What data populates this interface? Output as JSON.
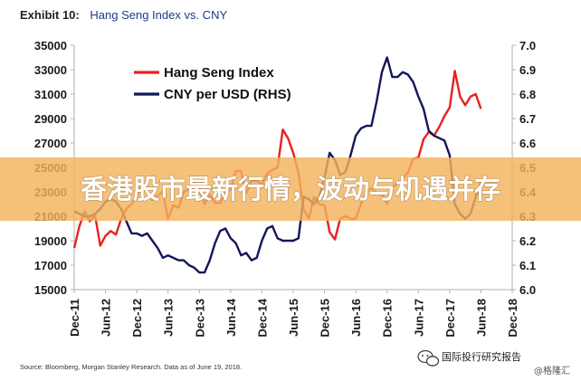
{
  "exhibit_label": "Exhibit 10:",
  "exhibit_title": "Hang Seng Index vs. CNY",
  "source_note": "Source: Bloomberg, Morgan Stanley Research. Data as of June 19, 2018.",
  "overlay_banner": "香港股市最新行情，波动与机遇并存",
  "watermark": {
    "channel": "国际投行研究报告",
    "handle": "@格隆汇"
  },
  "colors": {
    "hsi": "#e8211f",
    "cny": "#12175a",
    "banner_bg": "#f3b25c",
    "axis_line": "#b0b0b0"
  },
  "chart_data": {
    "type": "line",
    "title": "Hang Seng Index vs. CNY",
    "x_tick_labels": [
      "Dec-11",
      "Jun-12",
      "Dec-12",
      "Jun-13",
      "Dec-13",
      "Jun-14",
      "Dec-14",
      "Jun-15",
      "Dec-15",
      "Jun-16",
      "Dec-16",
      "Jun-17",
      "Dec-17",
      "Jun-18",
      "Dec-18"
    ],
    "x_range": [
      "2011-12",
      "2018-12"
    ],
    "y_left": {
      "label": "",
      "range": [
        15000,
        35000
      ],
      "ticks": [
        "15000",
        "17000",
        "19000",
        "21000",
        "23000",
        "25000",
        "27000",
        "29000",
        "31000",
        "33000",
        "35000"
      ]
    },
    "y_right": {
      "label": "",
      "range": [
        6.0,
        7.0
      ],
      "ticks": [
        "6.0",
        "6.1",
        "6.2",
        "6.3",
        "6.4",
        "6.5",
        "6.6",
        "6.7",
        "6.8",
        "6.9",
        "7.0"
      ]
    },
    "legend": {
      "position": "top-left"
    },
    "grid": false,
    "series": [
      {
        "name": "Hang Seng Index",
        "axis": "left",
        "x": [
          "2011-12",
          "2012-01",
          "2012-02",
          "2012-03",
          "2012-04",
          "2012-05",
          "2012-06",
          "2012-07",
          "2012-08",
          "2012-09",
          "2012-10",
          "2012-11",
          "2012-12",
          "2013-01",
          "2013-02",
          "2013-03",
          "2013-04",
          "2013-05",
          "2013-06",
          "2013-07",
          "2013-08",
          "2013-09",
          "2013-10",
          "2013-11",
          "2013-12",
          "2014-01",
          "2014-02",
          "2014-03",
          "2014-04",
          "2014-05",
          "2014-06",
          "2014-07",
          "2014-08",
          "2014-09",
          "2014-10",
          "2014-11",
          "2014-12",
          "2015-01",
          "2015-02",
          "2015-03",
          "2015-04",
          "2015-05",
          "2015-06",
          "2015-07",
          "2015-08",
          "2015-09",
          "2015-10",
          "2015-11",
          "2015-12",
          "2016-01",
          "2016-02",
          "2016-03",
          "2016-04",
          "2016-05",
          "2016-06",
          "2016-07",
          "2016-08",
          "2016-09",
          "2016-10",
          "2016-11",
          "2016-12",
          "2017-01",
          "2017-02",
          "2017-03",
          "2017-04",
          "2017-05",
          "2017-06",
          "2017-07",
          "2017-08",
          "2017-09",
          "2017-10",
          "2017-11",
          "2017-12",
          "2018-01",
          "2018-02",
          "2018-03",
          "2018-04",
          "2018-05",
          "2018-06"
        ],
        "values": [
          18400,
          20200,
          21400,
          20600,
          21100,
          18600,
          19400,
          19800,
          19500,
          20800,
          21600,
          22000,
          22600,
          23700,
          23000,
          22300,
          22700,
          23000,
          20800,
          21900,
          21700,
          23000,
          23200,
          23900,
          23300,
          22000,
          22800,
          22100,
          22100,
          23000,
          23200,
          24700,
          24700,
          22900,
          23900,
          23900,
          23600,
          24500,
          24800,
          25000,
          28100,
          27400,
          26200,
          24600,
          21600,
          20800,
          22600,
          22000,
          21900,
          19700,
          19100,
          20800,
          21000,
          20800,
          20800,
          22000,
          23000,
          23300,
          22900,
          22800,
          22000,
          23400,
          23700,
          24100,
          24600,
          25700,
          25800,
          27300,
          27900,
          27600,
          28300,
          29200,
          29900,
          32900,
          30800,
          30100,
          30800,
          31000,
          29800
        ]
      },
      {
        "name": "CNY per USD (RHS)",
        "axis": "right",
        "x": [
          "2011-12",
          "2012-01",
          "2012-02",
          "2012-03",
          "2012-04",
          "2012-05",
          "2012-06",
          "2012-07",
          "2012-08",
          "2012-09",
          "2012-10",
          "2012-11",
          "2012-12",
          "2013-01",
          "2013-02",
          "2013-03",
          "2013-04",
          "2013-05",
          "2013-06",
          "2013-07",
          "2013-08",
          "2013-09",
          "2013-10",
          "2013-11",
          "2013-12",
          "2014-01",
          "2014-02",
          "2014-03",
          "2014-04",
          "2014-05",
          "2014-06",
          "2014-07",
          "2014-08",
          "2014-09",
          "2014-10",
          "2014-11",
          "2014-12",
          "2015-01",
          "2015-02",
          "2015-03",
          "2015-04",
          "2015-05",
          "2015-06",
          "2015-07",
          "2015-08",
          "2015-09",
          "2015-10",
          "2015-11",
          "2015-12",
          "2016-01",
          "2016-02",
          "2016-03",
          "2016-04",
          "2016-05",
          "2016-06",
          "2016-07",
          "2016-08",
          "2016-09",
          "2016-10",
          "2016-11",
          "2016-12",
          "2017-01",
          "2017-02",
          "2017-03",
          "2017-04",
          "2017-05",
          "2017-06",
          "2017-07",
          "2017-08",
          "2017-09",
          "2017-10",
          "2017-11",
          "2017-12",
          "2018-01",
          "2018-02",
          "2018-03",
          "2018-04",
          "2018-05",
          "2018-06"
        ],
        "values": [
          6.32,
          6.31,
          6.3,
          6.3,
          6.31,
          6.33,
          6.36,
          6.37,
          6.36,
          6.33,
          6.28,
          6.23,
          6.23,
          6.22,
          6.23,
          6.2,
          6.17,
          6.13,
          6.14,
          6.13,
          6.12,
          6.12,
          6.1,
          6.09,
          6.07,
          6.07,
          6.12,
          6.19,
          6.24,
          6.25,
          6.21,
          6.19,
          6.14,
          6.15,
          6.12,
          6.13,
          6.2,
          6.25,
          6.26,
          6.21,
          6.2,
          6.2,
          6.2,
          6.21,
          6.38,
          6.37,
          6.35,
          6.38,
          6.46,
          6.56,
          6.53,
          6.47,
          6.48,
          6.55,
          6.63,
          6.66,
          6.67,
          6.67,
          6.77,
          6.89,
          6.95,
          6.87,
          6.87,
          6.89,
          6.88,
          6.85,
          6.79,
          6.74,
          6.65,
          6.63,
          6.62,
          6.61,
          6.55,
          6.35,
          6.31,
          6.29,
          6.31,
          6.38,
          6.44
        ]
      }
    ]
  }
}
